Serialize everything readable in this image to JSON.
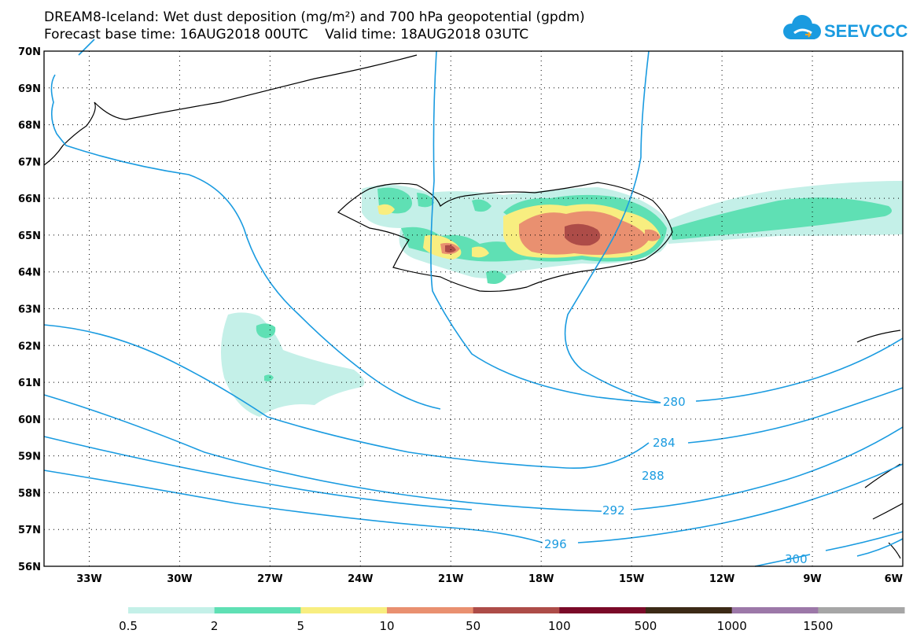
{
  "title_line1": "DREAM8-Iceland: Wet dust deposition (mg/m²) and 700 hPa geopotential (gpdm)",
  "title_line2": "Forecast base time: 16AUG2018 00UTC    Valid time: 18AUG2018 03UTC",
  "logo_text": "SEEVCCC",
  "map": {
    "lon_range": [
      -34.5,
      -6
    ],
    "lat_range": [
      56,
      70
    ],
    "lat_ticks": [
      "70N",
      "69N",
      "68N",
      "67N",
      "66N",
      "65N",
      "64N",
      "63N",
      "62N",
      "61N",
      "60N",
      "59N",
      "58N",
      "57N",
      "56N"
    ],
    "lon_ticks": [
      "33W",
      "30W",
      "27W",
      "24W",
      "21W",
      "18W",
      "15W",
      "12W",
      "9W",
      "6W"
    ],
    "contour_color": "#1a9be0",
    "contour_labels": [
      "280",
      "284",
      "288",
      "292",
      "296",
      "300"
    ]
  },
  "colorbar": {
    "labels": [
      "0.5",
      "2",
      "5",
      "10",
      "50",
      "100",
      "500",
      "1000",
      "1500"
    ],
    "colors": [
      "#c4f0e8",
      "#5fe0b4",
      "#f8ee80",
      "#e99070",
      "#ad4c48",
      "#7a0a28",
      "#3c2a16",
      "#9c78a8",
      "#a6a6a6"
    ]
  }
}
